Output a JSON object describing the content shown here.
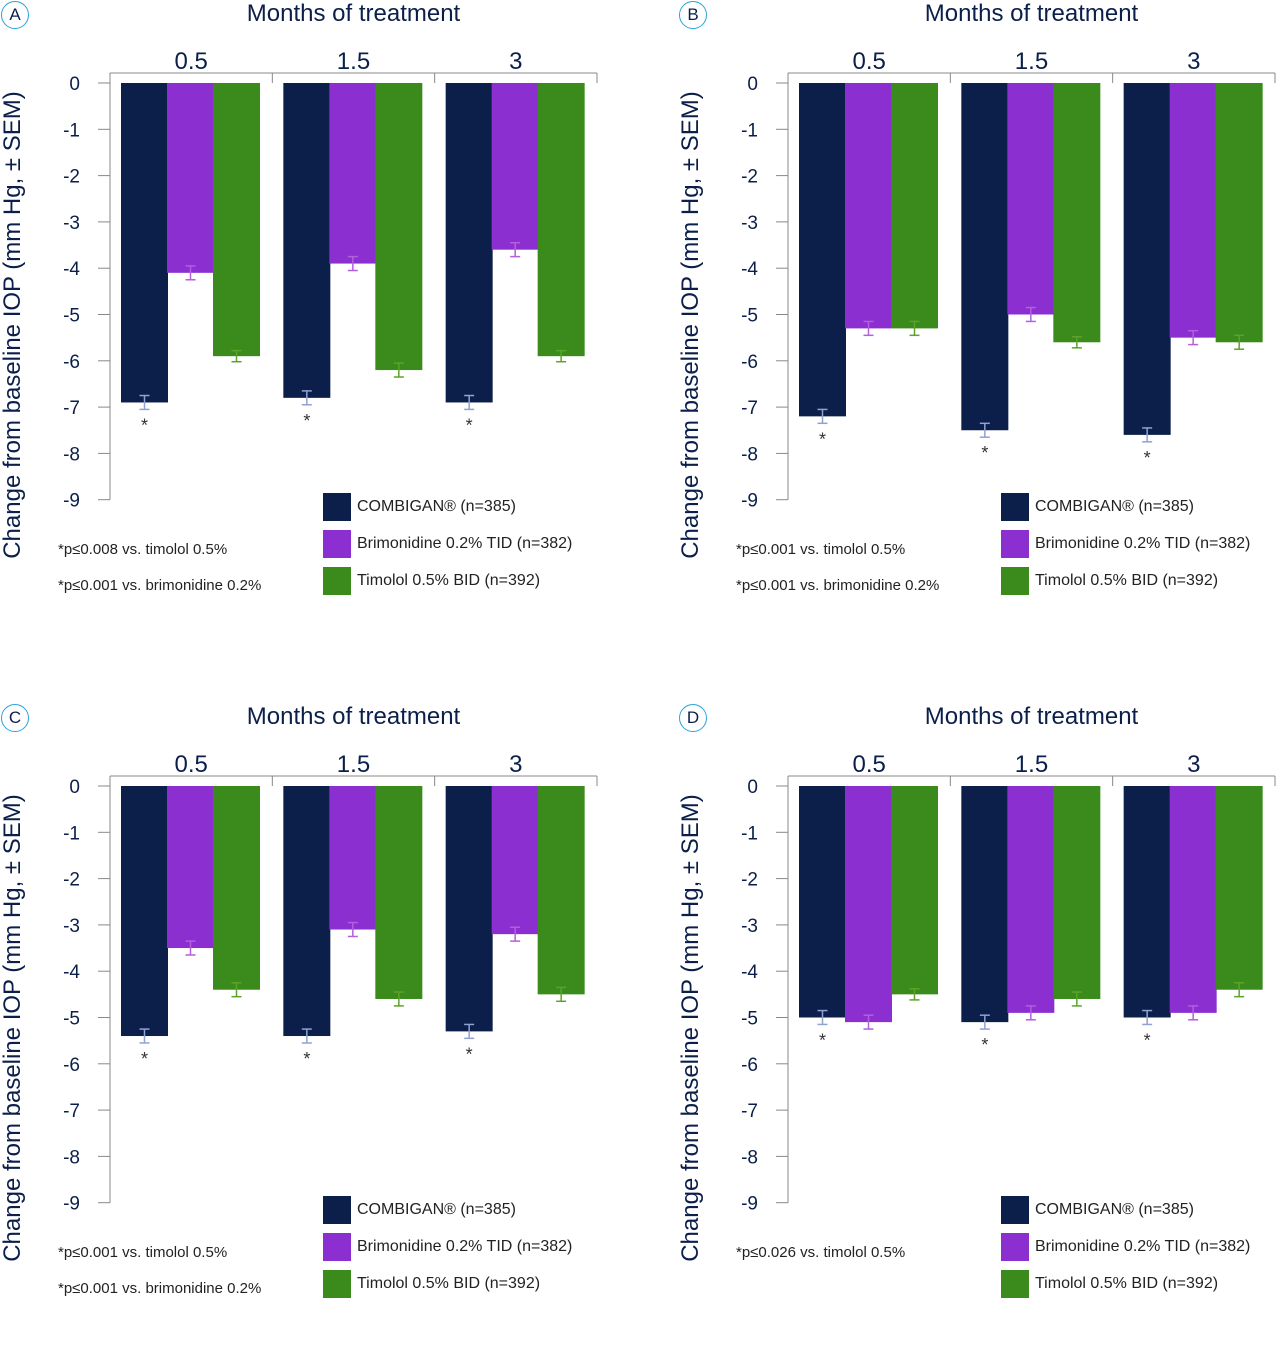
{
  "chart_data": [
    {
      "type": "bar",
      "panel_label": "A",
      "xlabel": "Months of treatment",
      "ylabel": "Change from baseline IOP (mm Hg, ± SEM)",
      "categories": [
        "0.5",
        "1.5",
        "3"
      ],
      "ylim": [
        -9,
        0
      ],
      "yticks": [
        "0",
        "-1",
        "-2",
        "-3",
        "-4",
        "-5",
        "-6",
        "-7",
        "-8",
        "-9"
      ],
      "series": [
        {
          "name": "COMBIGAN® (n=385)",
          "color": "#0b1f4a",
          "errcolor": "#8fa2d2",
          "values": [
            -6.9,
            -6.8,
            -6.9
          ],
          "sem": [
            0.15,
            0.15,
            0.15
          ]
        },
        {
          "name": "Brimonidine 0.2% TID (n=382)",
          "color": "#8b2fd0",
          "errcolor": "#b45ee0",
          "values": [
            -4.1,
            -3.9,
            -3.6
          ],
          "sem": [
            0.15,
            0.15,
            0.15
          ]
        },
        {
          "name": "Timolol 0.5% BID (n=392)",
          "color": "#3a8a1c",
          "errcolor": "#5ca32a",
          "values": [
            -5.9,
            -6.2,
            -5.9
          ],
          "sem": [
            0.12,
            0.15,
            0.12
          ]
        }
      ],
      "significance": [
        "*",
        "*",
        "*"
      ],
      "footnotes": [
        "*p≤0.008 vs. timolol 0.5%",
        "*p≤0.001 vs. brimonidine 0.2%"
      ]
    },
    {
      "type": "bar",
      "panel_label": "B",
      "xlabel": "Months of treatment",
      "ylabel": "Change from baseline IOP (mm Hg, ± SEM)",
      "categories": [
        "0.5",
        "1.5",
        "3"
      ],
      "ylim": [
        -9,
        0
      ],
      "yticks": [
        "0",
        "-1",
        "-2",
        "-3",
        "-4",
        "-5",
        "-6",
        "-7",
        "-8",
        "-9"
      ],
      "series": [
        {
          "name": "COMBIGAN® (n=385)",
          "color": "#0b1f4a",
          "errcolor": "#8fa2d2",
          "values": [
            -7.2,
            -7.5,
            -7.6
          ],
          "sem": [
            0.15,
            0.15,
            0.15
          ]
        },
        {
          "name": "Brimonidine 0.2% TID (n=382)",
          "color": "#8b2fd0",
          "errcolor": "#b45ee0",
          "values": [
            -5.3,
            -5.0,
            -5.5
          ],
          "sem": [
            0.15,
            0.15,
            0.15
          ]
        },
        {
          "name": "Timolol 0.5% BID (n=392)",
          "color": "#3a8a1c",
          "errcolor": "#5ca32a",
          "values": [
            -5.3,
            -5.6,
            -5.6
          ],
          "sem": [
            0.15,
            0.12,
            0.15
          ]
        }
      ],
      "significance": [
        "*",
        "*",
        "*"
      ],
      "footnotes": [
        "*p≤0.001 vs. timolol 0.5%",
        "*p≤0.001 vs. brimonidine 0.2%"
      ]
    },
    {
      "type": "bar",
      "panel_label": "C",
      "xlabel": "Months of treatment",
      "ylabel": "Change from baseline IOP (mm Hg, ± SEM)",
      "categories": [
        "0.5",
        "1.5",
        "3"
      ],
      "ylim": [
        -9,
        0
      ],
      "yticks": [
        "0",
        "-1",
        "-2",
        "-3",
        "-4",
        "-5",
        "-6",
        "-7",
        "-8",
        "-9"
      ],
      "series": [
        {
          "name": "COMBIGAN® (n=385)",
          "color": "#0b1f4a",
          "errcolor": "#8fa2d2",
          "values": [
            -5.4,
            -5.4,
            -5.3
          ],
          "sem": [
            0.15,
            0.15,
            0.15
          ]
        },
        {
          "name": "Brimonidine 0.2% TID (n=382)",
          "color": "#8b2fd0",
          "errcolor": "#b45ee0",
          "values": [
            -3.5,
            -3.1,
            -3.2
          ],
          "sem": [
            0.15,
            0.15,
            0.15
          ]
        },
        {
          "name": "Timolol 0.5% BID (n=392)",
          "color": "#3a8a1c",
          "errcolor": "#5ca32a",
          "values": [
            -4.4,
            -4.6,
            -4.5
          ],
          "sem": [
            0.15,
            0.15,
            0.15
          ]
        }
      ],
      "significance": [
        "*",
        "*",
        "*"
      ],
      "footnotes": [
        "*p≤0.001 vs. timolol 0.5%",
        "*p≤0.001 vs. brimonidine 0.2%"
      ]
    },
    {
      "type": "bar",
      "panel_label": "D",
      "xlabel": "Months of treatment",
      "ylabel": "Change from baseline IOP (mm Hg, ± SEM)",
      "categories": [
        "0.5",
        "1.5",
        "3"
      ],
      "ylim": [
        -9,
        0
      ],
      "yticks": [
        "0",
        "-1",
        "-2",
        "-3",
        "-4",
        "-5",
        "-6",
        "-7",
        "-8",
        "-9"
      ],
      "series": [
        {
          "name": "COMBIGAN® (n=385)",
          "color": "#0b1f4a",
          "errcolor": "#8fa2d2",
          "values": [
            -5.0,
            -5.1,
            -5.0
          ],
          "sem": [
            0.15,
            0.15,
            0.15
          ]
        },
        {
          "name": "Brimonidine 0.2% TID (n=382)",
          "color": "#8b2fd0",
          "errcolor": "#b45ee0",
          "values": [
            -5.1,
            -4.9,
            -4.9
          ],
          "sem": [
            0.15,
            0.15,
            0.15
          ]
        },
        {
          "name": "Timolol 0.5% BID (n=392)",
          "color": "#3a8a1c",
          "errcolor": "#5ca32a",
          "values": [
            -4.5,
            -4.6,
            -4.4
          ],
          "sem": [
            0.12,
            0.15,
            0.15
          ]
        }
      ],
      "significance": [
        "*",
        "*",
        "*"
      ],
      "footnotes": [
        "*p≤0.026 vs. timolol 0.5%"
      ]
    }
  ]
}
